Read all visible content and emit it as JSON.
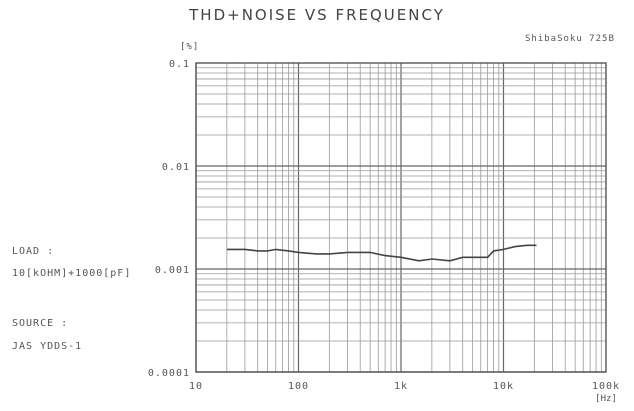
{
  "chart_data": {
    "type": "line",
    "title": "THD+NOISE VS FREQUENCY",
    "brand": "ShibaSoku 725B",
    "ylabel": "[%]",
    "xlabel": "[Hz]",
    "x_scale": "log",
    "y_scale": "log",
    "xlim": [
      10,
      100000
    ],
    "ylim": [
      0.0001,
      0.1
    ],
    "x_ticks": [
      {
        "value": 10,
        "label": "10"
      },
      {
        "value": 100,
        "label": "100"
      },
      {
        "value": 1000,
        "label": "1k"
      },
      {
        "value": 10000,
        "label": "10k"
      },
      {
        "value": 100000,
        "label": "100k"
      }
    ],
    "y_ticks": [
      {
        "value": 0.1,
        "label": "0.1"
      },
      {
        "value": 0.01,
        "label": "0.01"
      },
      {
        "value": 0.001,
        "label": "0.001"
      },
      {
        "value": 0.0001,
        "label": "0.0001"
      }
    ],
    "grid": true,
    "series": [
      {
        "color": "#444444",
        "points": [
          [
            20,
            0.00155
          ],
          [
            30,
            0.00155
          ],
          [
            40,
            0.0015
          ],
          [
            50,
            0.0015
          ],
          [
            60,
            0.00155
          ],
          [
            80,
            0.0015
          ],
          [
            100,
            0.00145
          ],
          [
            150,
            0.0014
          ],
          [
            200,
            0.0014
          ],
          [
            300,
            0.00145
          ],
          [
            500,
            0.00145
          ],
          [
            700,
            0.00135
          ],
          [
            1000,
            0.0013
          ],
          [
            1500,
            0.0012
          ],
          [
            2000,
            0.00125
          ],
          [
            3000,
            0.0012
          ],
          [
            4000,
            0.0013
          ],
          [
            5000,
            0.0013
          ],
          [
            7000,
            0.0013
          ],
          [
            8000,
            0.0015
          ],
          [
            10000,
            0.00155
          ],
          [
            13000,
            0.00165
          ],
          [
            17000,
            0.0017
          ],
          [
            21000,
            0.0017
          ]
        ]
      }
    ]
  },
  "conditions": {
    "load_label": "LOAD :",
    "load_value": "10[kOHM]+1000[pF]",
    "source_label": "SOURCE :",
    "source_value": "JAS YDDS-1"
  }
}
